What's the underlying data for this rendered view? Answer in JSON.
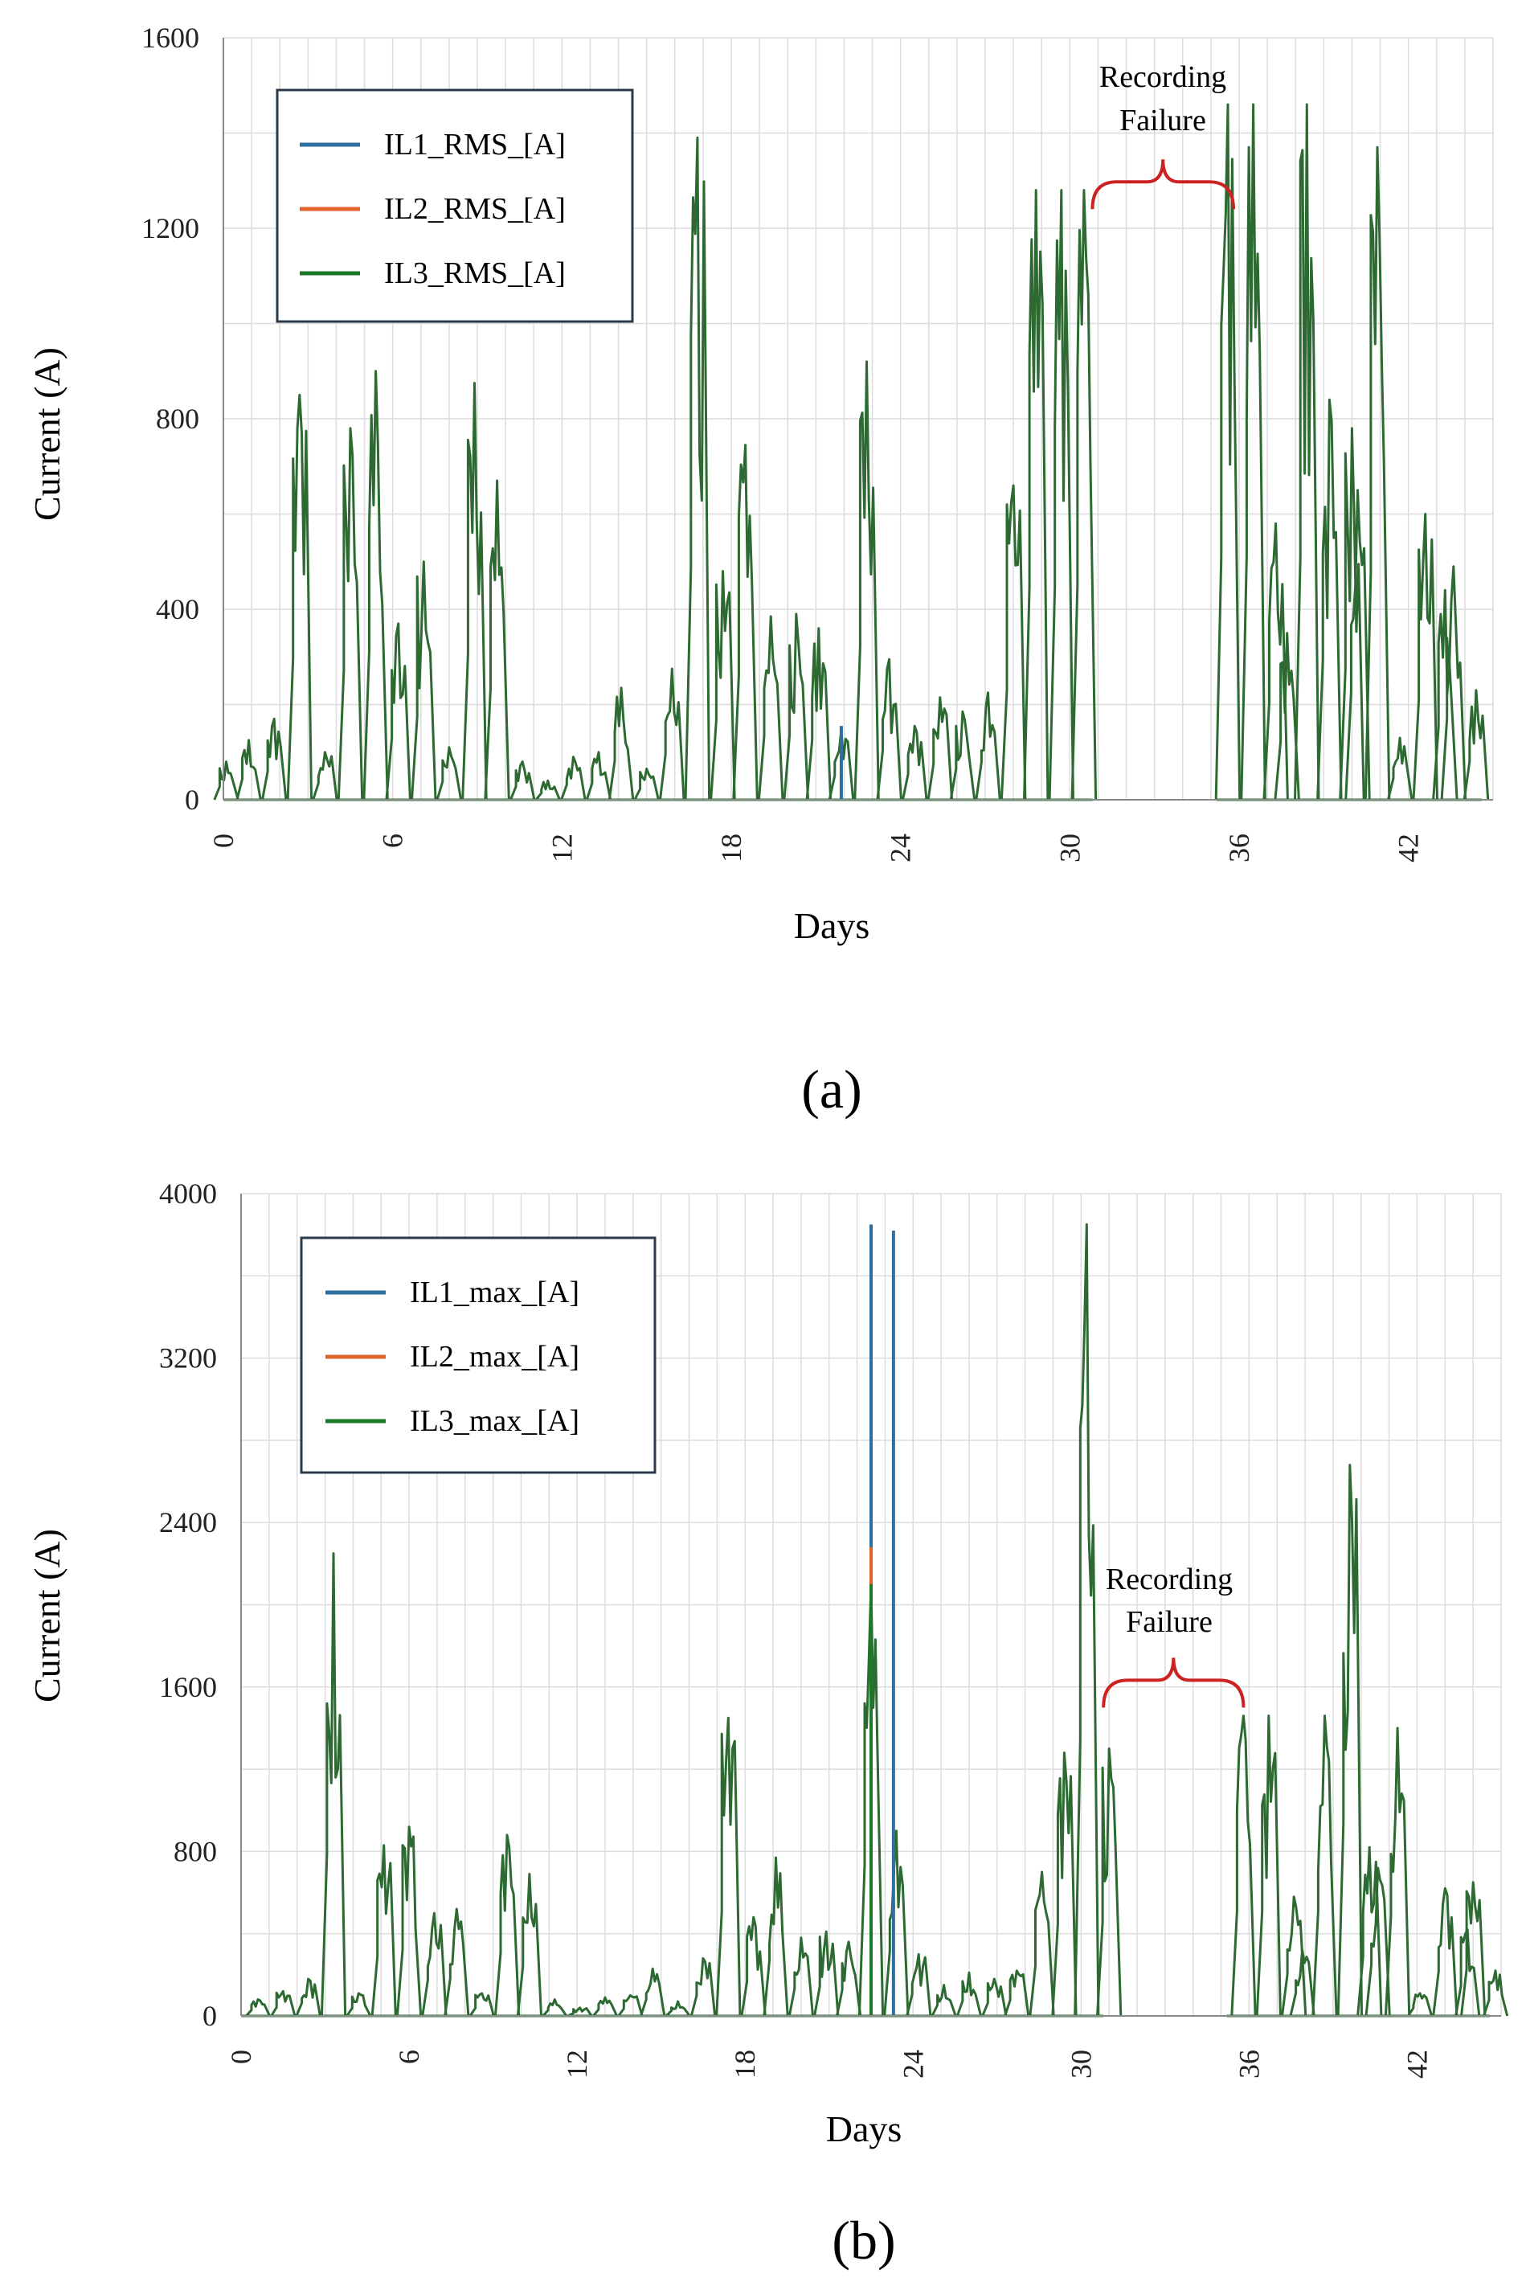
{
  "colors": {
    "il1": "#2e6fa0",
    "il2": "#e0642c",
    "il3": "#1a7a28",
    "overlap": "#2d6a32",
    "annotation": "#cc2222",
    "grid": "#dcdcdc",
    "axis": "#888888"
  },
  "chart_data": [
    {
      "id": "a",
      "type": "line",
      "caption": "(a)",
      "xlabel": "Days",
      "ylabel": "Current (A)",
      "xlim": [
        0,
        45
      ],
      "ylim": [
        0,
        1600
      ],
      "xticks": [
        0,
        6,
        12,
        18,
        24,
        30,
        36,
        42
      ],
      "yticks": [
        0,
        400,
        800,
        1200,
        1600
      ],
      "legend": {
        "position": "top-left",
        "entries": [
          "IL1_RMS_[A]",
          "IL2_RMS_[A]",
          "IL3_RMS_[A]"
        ]
      },
      "annotation": {
        "lines": [
          "Recording",
          "Failure"
        ],
        "x_range": [
          30.8,
          35.8
        ],
        "y": 1240
      },
      "gap": [
        30.8,
        35.2
      ],
      "series": [
        {
          "name": "IL3_RMS_[A]",
          "role": "all phases (overlapping)",
          "peaks": [
            [
              0.1,
              80
            ],
            [
              0.9,
              125
            ],
            [
              1.8,
              170
            ],
            [
              2.7,
              850
            ],
            [
              3.6,
              100
            ],
            [
              4.5,
              780
            ],
            [
              5.4,
              900
            ],
            [
              6.2,
              370
            ],
            [
              7.1,
              500
            ],
            [
              8.0,
              110
            ],
            [
              8.9,
              875
            ],
            [
              9.7,
              670
            ],
            [
              10.6,
              80
            ],
            [
              11.5,
              40
            ],
            [
              12.4,
              90
            ],
            [
              13.3,
              100
            ],
            [
              14.1,
              235
            ],
            [
              15.0,
              65
            ],
            [
              15.9,
              275
            ],
            [
              16.8,
              1390
            ],
            [
              17.7,
              480
            ],
            [
              18.5,
              745
            ],
            [
              19.4,
              385
            ],
            [
              20.3,
              390
            ],
            [
              21.1,
              360
            ],
            [
              21.9,
              145
            ],
            [
              22.8,
              920
            ],
            [
              23.6,
              295
            ],
            [
              24.5,
              155
            ],
            [
              25.4,
              215
            ],
            [
              26.2,
              185
            ],
            [
              27.1,
              225
            ],
            [
              28.0,
              660
            ],
            [
              28.8,
              1280
            ],
            [
              29.7,
              1280
            ],
            [
              30.5,
              1280
            ],
            [
              35.6,
              1460
            ],
            [
              36.5,
              1460
            ],
            [
              37.3,
              580
            ],
            [
              37.7,
              350
            ],
            [
              38.4,
              1460
            ],
            [
              39.2,
              840
            ],
            [
              40.0,
              780
            ],
            [
              40.2,
              650
            ],
            [
              40.9,
              1370
            ],
            [
              41.7,
              130
            ],
            [
              42.6,
              600
            ],
            [
              43.3,
              440
            ],
            [
              43.6,
              490
            ],
            [
              44.4,
              230
            ]
          ]
        },
        {
          "name": "IL1_RMS_[A]",
          "role": "visible excursion",
          "peaks": [
            [
              21.9,
              155
            ]
          ]
        }
      ]
    },
    {
      "id": "b",
      "type": "line",
      "caption": "(b)",
      "xlabel": "Days",
      "ylabel": "Current (A)",
      "xlim": [
        0,
        45
      ],
      "ylim": [
        0,
        4000
      ],
      "xticks": [
        0,
        6,
        12,
        18,
        24,
        30,
        36,
        42
      ],
      "yticks": [
        0,
        800,
        1600,
        2400,
        3200,
        4000
      ],
      "legend": {
        "position": "top-left",
        "entries": [
          "IL1_max_[A]",
          "IL2_max_[A]",
          "IL3_max_[A]"
        ]
      },
      "annotation": {
        "lines": [
          "Recording",
          "Failure"
        ],
        "x_range": [
          30.8,
          35.8
        ],
        "y": 1500
      },
      "gap": [
        30.8,
        35.2
      ],
      "series": [
        {
          "name": "IL3_max_[A]",
          "role": "all phases (overlapping)",
          "peaks": [
            [
              0.6,
              80
            ],
            [
              1.5,
              120
            ],
            [
              2.4,
              180
            ],
            [
              3.3,
              2250
            ],
            [
              4.2,
              110
            ],
            [
              5.1,
              830
            ],
            [
              6.0,
              920
            ],
            [
              6.9,
              500
            ],
            [
              7.7,
              520
            ],
            [
              8.6,
              110
            ],
            [
              9.5,
              880
            ],
            [
              10.3,
              690
            ],
            [
              11.2,
              80
            ],
            [
              12.1,
              40
            ],
            [
              13.0,
              90
            ],
            [
              13.9,
              100
            ],
            [
              14.7,
              230
            ],
            [
              15.6,
              70
            ],
            [
              16.5,
              280
            ],
            [
              17.4,
              1450
            ],
            [
              18.3,
              480
            ],
            [
              19.1,
              770
            ],
            [
              20.0,
              380
            ],
            [
              20.9,
              410
            ],
            [
              21.7,
              360
            ],
            [
              22.5,
              2100
            ],
            [
              23.4,
              900
            ],
            [
              24.2,
              300
            ],
            [
              25.1,
              150
            ],
            [
              26.0,
              210
            ],
            [
              26.9,
              180
            ],
            [
              27.7,
              220
            ],
            [
              28.6,
              700
            ],
            [
              29.4,
              1280
            ],
            [
              30.2,
              3850
            ],
            [
              31.0,
              1300
            ],
            [
              35.8,
              1460
            ],
            [
              36.7,
              1460
            ],
            [
              37.6,
              580
            ],
            [
              37.9,
              320
            ],
            [
              38.7,
              1460
            ],
            [
              39.6,
              2680
            ],
            [
              40.3,
              820
            ],
            [
              40.6,
              720
            ],
            [
              41.3,
              1400
            ],
            [
              42.1,
              110
            ],
            [
              43.0,
              620
            ],
            [
              43.8,
              420
            ],
            [
              44.0,
              650
            ],
            [
              44.8,
              220
            ]
          ]
        },
        {
          "name": "IL1_max_[A]",
          "role": "visible spikes",
          "peaks": [
            [
              22.5,
              3850
            ],
            [
              23.3,
              3820
            ]
          ]
        },
        {
          "name": "IL2_max_[A]",
          "role": "visible spike",
          "peaks": [
            [
              22.5,
              2280
            ]
          ]
        }
      ]
    }
  ]
}
